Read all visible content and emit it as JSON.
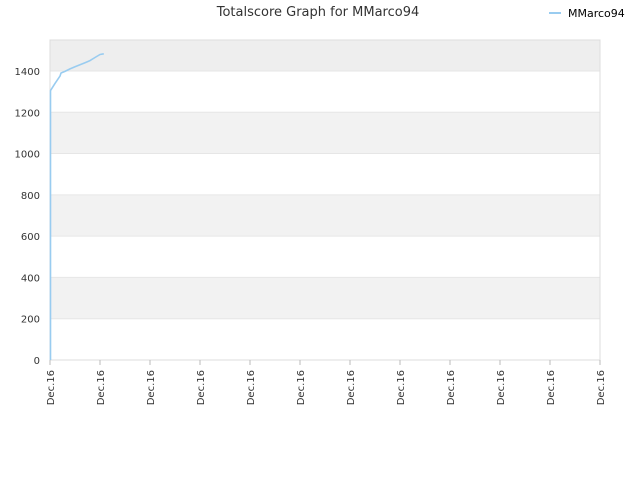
{
  "chart_data": {
    "type": "line",
    "title": "Totalscore Graph for MMarco94",
    "xlabel": "",
    "ylabel": "",
    "ylim": [
      0,
      1550
    ],
    "yticks": [
      0,
      200,
      400,
      600,
      800,
      1000,
      1200,
      1400
    ],
    "xtick_labels": [
      "Dec.16",
      "Dec.16",
      "Dec.16",
      "Dec.16",
      "Dec.16",
      "Dec.16",
      "Dec.16",
      "Dec.16",
      "Dec.16",
      "Dec.16",
      "Dec.16",
      "Dec.16"
    ],
    "grid": true,
    "legend_position": "top-right",
    "series": [
      {
        "name": "MMarco94",
        "color": "#99ccf0",
        "points": [
          [
            0.01,
            0
          ],
          [
            0.01,
            1305
          ],
          [
            0.1,
            1340
          ],
          [
            0.2,
            1375
          ],
          [
            0.22,
            1390
          ],
          [
            0.3,
            1398
          ],
          [
            0.4,
            1410
          ],
          [
            0.5,
            1420
          ],
          [
            0.6,
            1430
          ],
          [
            0.7,
            1440
          ],
          [
            0.8,
            1450
          ],
          [
            0.9,
            1465
          ],
          [
            1.0,
            1480
          ],
          [
            1.075,
            1483
          ]
        ]
      }
    ]
  }
}
